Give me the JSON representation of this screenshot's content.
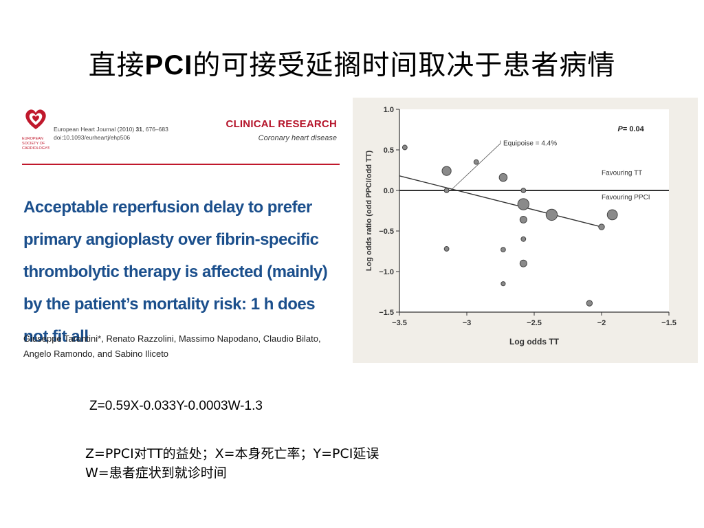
{
  "slide": {
    "title_pre": "直接",
    "title_mid": "PCI",
    "title_post": "的可接受延搁时间取决于患者病情"
  },
  "paper": {
    "society_lines": [
      "EUROPEAN",
      "SOCIETY OF",
      "CARDIOLOGY®"
    ],
    "journal_line1_pre": "European Heart Journal (2010) ",
    "journal_line1_vol": "31",
    "journal_line1_post": ", 676–683",
    "journal_line2": "doi:10.1093/eurheartj/ehp506",
    "section": "CLINICAL RESEARCH",
    "subsection": "Coronary heart disease",
    "title": "Acceptable reperfusion delay to prefer primary angioplasty over fibrin-specific thrombolytic therapy is affected (mainly) by the patient’s mortality risk: 1 h does not fit all",
    "authors": "Giuseppe Tarantini*, Renato Razzolini, Massimo Napodano, Claudio Bilato, Angelo Ramondo, and Sabino Iliceto"
  },
  "chart_data": {
    "type": "scatter",
    "xlabel": "Log odds TT",
    "ylabel": "Log odds ratio (odd PPCI/odd TT)",
    "xlim": [
      -3.5,
      -1.5
    ],
    "ylim": [
      -1.5,
      1.0
    ],
    "xticks": [
      -3.5,
      -3,
      -2.5,
      -2,
      -1.5
    ],
    "yticks": [
      1.0,
      0.5,
      0.0,
      -0.5,
      -1.0,
      -1.5
    ],
    "xtick_labels": [
      "−3.5",
      "−3",
      "−2.5",
      "−2",
      "−1.5"
    ],
    "ytick_labels": [
      "1.0",
      "0.5",
      "0.0",
      "−0.5",
      "−1.0",
      "−1.5"
    ],
    "p_label": "P",
    "p_value": "= 0.04",
    "annotation": "Equipoise = 4.4%",
    "region_labels": [
      "Favouring TT",
      "Favouring PPCI"
    ],
    "reference_line_y": 0.0,
    "regression_line": [
      {
        "x": -3.5,
        "y": 0.18
      },
      {
        "x": -2.0,
        "y": -0.45
      }
    ],
    "equipoise_x": -3.12,
    "points": [
      {
        "x": -3.46,
        "y": 0.53,
        "size": 1
      },
      {
        "x": -3.15,
        "y": 0.24,
        "size": 3
      },
      {
        "x": -3.15,
        "y": 0.0,
        "size": 1
      },
      {
        "x": -3.15,
        "y": -0.72,
        "size": 1
      },
      {
        "x": -2.93,
        "y": 0.35,
        "size": 1
      },
      {
        "x": -2.73,
        "y": 0.16,
        "size": 2.5
      },
      {
        "x": -2.73,
        "y": -0.73,
        "size": 1
      },
      {
        "x": -2.73,
        "y": -1.15,
        "size": 0.8
      },
      {
        "x": -2.58,
        "y": 0.0,
        "size": 1
      },
      {
        "x": -2.58,
        "y": -0.17,
        "size": 4
      },
      {
        "x": -2.58,
        "y": -0.36,
        "size": 2
      },
      {
        "x": -2.58,
        "y": -0.6,
        "size": 1
      },
      {
        "x": -2.58,
        "y": -0.9,
        "size": 2
      },
      {
        "x": -2.37,
        "y": -0.3,
        "size": 4
      },
      {
        "x": -2.09,
        "y": -1.39,
        "size": 1.5
      },
      {
        "x": -2.0,
        "y": -0.45,
        "size": 1.5
      },
      {
        "x": -1.92,
        "y": -0.3,
        "size": 3.5
      }
    ]
  },
  "equation": "Z=0.59X-0.033Y-0.0003W-1.3",
  "notes": [
    "Z=PPCI对TT的益处；X=本身死亡率；Y=PCI延误",
    "W=患者症状到就诊时间"
  ]
}
